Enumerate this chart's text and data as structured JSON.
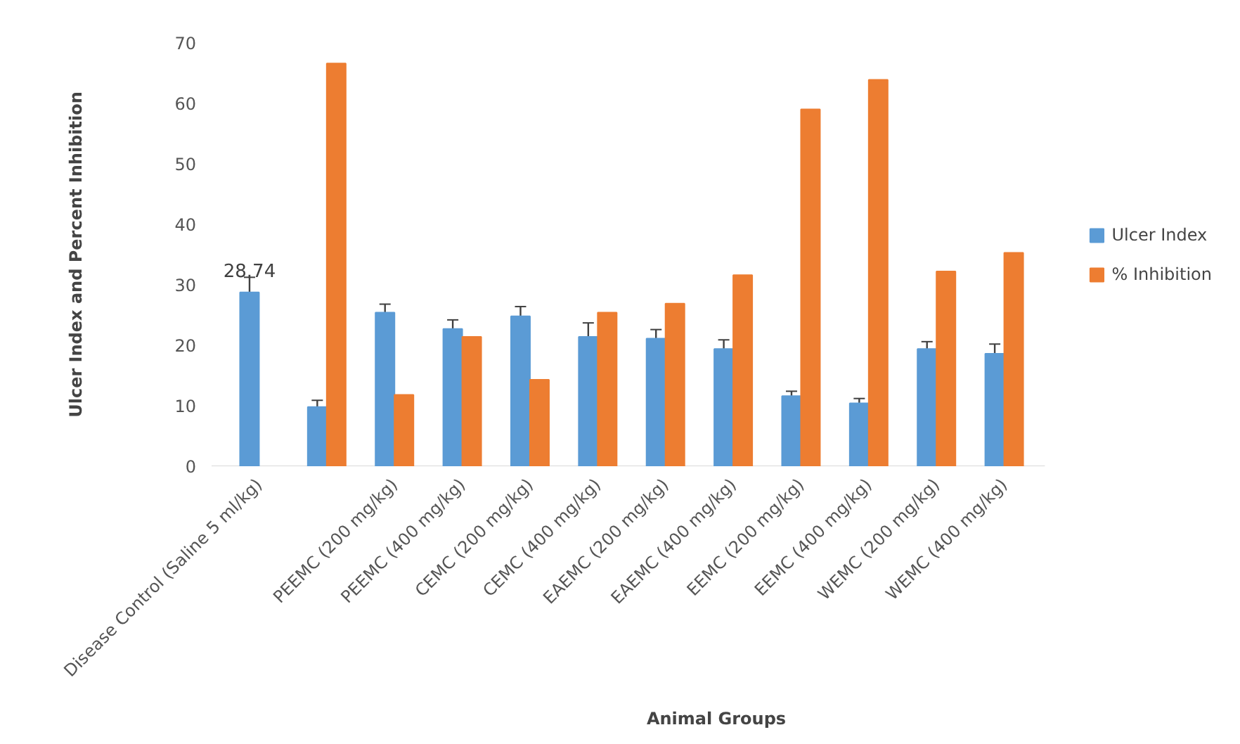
{
  "chart_data": {
    "type": "bar",
    "xlabel": "Animal Groups",
    "ylabel": "Ulcer Index and Percent Inhibition",
    "categories": [
      "Disease Control (Saline 5 ml/kg)",
      null,
      "PEEMC (200 mg/kg)",
      "PEEMC (400 mg/kg)",
      "CEMC (200 mg/kg)",
      "CEMC (400 mg/kg)",
      "EAEMC (200 mg/kg)",
      "EAEMC (400 mg/kg)",
      "EEMC (200 mg/kg)",
      "EEMC (400 mg/kg)",
      "WEMC (200 mg/kg)",
      "WEMC (400 mg/kg)"
    ],
    "series": [
      {
        "name": "Ulcer Index",
        "color": "#5b9bd5",
        "values": [
          28.74,
          9.8,
          25.4,
          22.7,
          24.8,
          21.4,
          21.1,
          19.4,
          11.6,
          10.4,
          19.4,
          18.6
        ],
        "errors": [
          2.5,
          1.1,
          1.4,
          1.5,
          1.6,
          2.3,
          1.5,
          1.5,
          0.8,
          0.8,
          1.2,
          1.6
        ],
        "value_labels": [
          "28.74",
          null,
          null,
          null,
          null,
          null,
          null,
          null,
          null,
          null,
          null,
          null
        ]
      },
      {
        "name": "% Inhibition",
        "color": "#ed7d31",
        "values": [
          null,
          66.6,
          11.8,
          21.4,
          14.3,
          25.4,
          26.9,
          31.6,
          59.0,
          63.9,
          32.2,
          35.3
        ]
      }
    ],
    "ylim": [
      0,
      70
    ],
    "yticks": [
      0,
      10,
      20,
      30,
      40,
      50,
      60,
      70
    ],
    "legend": "right",
    "grid": false
  }
}
